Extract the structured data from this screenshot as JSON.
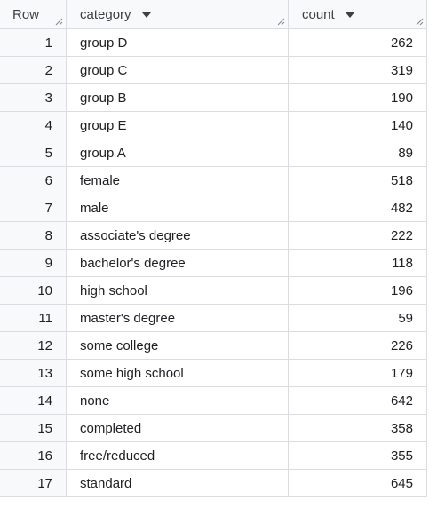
{
  "table": {
    "headers": {
      "row": "Row",
      "category": "category",
      "count": "count"
    },
    "sort_icon": "caret-down-icon",
    "resize_icon": "resize-handle-icon",
    "rows": [
      {
        "row": "1",
        "category": "group D",
        "count": "262"
      },
      {
        "row": "2",
        "category": "group C",
        "count": "319"
      },
      {
        "row": "3",
        "category": "group B",
        "count": "190"
      },
      {
        "row": "4",
        "category": "group E",
        "count": "140"
      },
      {
        "row": "5",
        "category": "group A",
        "count": "89"
      },
      {
        "row": "6",
        "category": "female",
        "count": "518"
      },
      {
        "row": "7",
        "category": "male",
        "count": "482"
      },
      {
        "row": "8",
        "category": "associate's degree",
        "count": "222"
      },
      {
        "row": "9",
        "category": "bachelor's degree",
        "count": "118"
      },
      {
        "row": "10",
        "category": "high school",
        "count": "196"
      },
      {
        "row": "11",
        "category": "master's degree",
        "count": "59"
      },
      {
        "row": "12",
        "category": "some college",
        "count": "226"
      },
      {
        "row": "13",
        "category": "some high school",
        "count": "179"
      },
      {
        "row": "14",
        "category": "none",
        "count": "642"
      },
      {
        "row": "15",
        "category": "completed",
        "count": "358"
      },
      {
        "row": "16",
        "category": "free/reduced",
        "count": "355"
      },
      {
        "row": "17",
        "category": "standard",
        "count": "645"
      }
    ]
  },
  "colors": {
    "grid_line": "#dadce0",
    "header_bg": "#f8f9fa",
    "text": "#202124"
  }
}
